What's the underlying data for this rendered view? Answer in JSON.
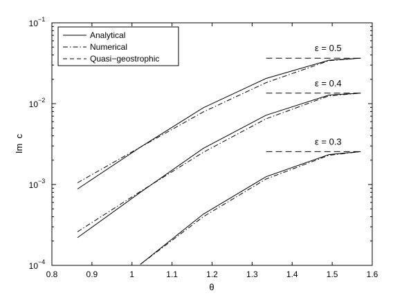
{
  "chart_data": {
    "type": "line",
    "xlabel": "θ",
    "ylabel": "Im  c",
    "yscale": "log",
    "xlim": [
      0.8,
      1.6
    ],
    "ylim": [
      0.0001,
      0.1
    ],
    "xticks": [
      "0.8",
      "0.9",
      "1",
      "1.1",
      "1.2",
      "1.3",
      "1.4",
      "1.5",
      "1.6"
    ],
    "yticks": [
      {
        "base": "10",
        "exp": "−4",
        "value": 0.0001
      },
      {
        "base": "10",
        "exp": "−3",
        "value": 0.001
      },
      {
        "base": "10",
        "exp": "−2",
        "value": 0.01
      },
      {
        "base": "10",
        "exp": "−1",
        "value": 0.1
      }
    ],
    "grid": false,
    "legend_position": "top-left",
    "legend": [
      {
        "label": "Analytical",
        "style": "solid"
      },
      {
        "label": "Numerical",
        "style": "dashdot"
      },
      {
        "label": "Quasi−geostrophic",
        "style": "dashed"
      }
    ],
    "curves": [
      {
        "epsilon_label": "ε = 0.5",
        "analytical": {
          "x": [
            0.864,
            1.021,
            1.178,
            1.335,
            1.492,
            1.571
          ],
          "y": [
            0.00088,
            0.0029,
            0.0089,
            0.0205,
            0.0345,
            0.0365
          ]
        },
        "numerical": {
          "x": [
            0.864,
            1.021,
            1.178,
            1.335,
            1.492,
            1.571
          ],
          "y": [
            0.00105,
            0.0029,
            0.0079,
            0.0182,
            0.034,
            0.0365
          ]
        },
        "quasi_geostrophic": {
          "x": [
            1.335,
            1.571
          ],
          "y": [
            0.0365,
            0.0365
          ]
        }
      },
      {
        "epsilon_label": "ε = 0.4",
        "analytical": {
          "x": [
            0.864,
            1.021,
            1.178,
            1.335,
            1.492,
            1.571
          ],
          "y": [
            0.00022,
            0.0008,
            0.0028,
            0.0072,
            0.0128,
            0.0135
          ]
        },
        "numerical": {
          "x": [
            0.864,
            1.021,
            1.178,
            1.335,
            1.492,
            1.571
          ],
          "y": [
            0.00026,
            0.00082,
            0.0025,
            0.0065,
            0.0125,
            0.0135
          ]
        },
        "quasi_geostrophic": {
          "x": [
            1.335,
            1.571
          ],
          "y": [
            0.0135,
            0.0135
          ]
        }
      },
      {
        "epsilon_label": "ε = 0.3",
        "analytical": {
          "x": [
            1.021,
            1.178,
            1.335,
            1.492,
            1.571
          ],
          "y": [
            0.000103,
            0.00043,
            0.00125,
            0.00235,
            0.00255
          ]
        },
        "numerical": {
          "x": [
            1.021,
            1.178,
            1.335,
            1.492,
            1.571
          ],
          "y": [
            0.000103,
            0.0004,
            0.00117,
            0.0023,
            0.00255
          ]
        },
        "quasi_geostrophic": {
          "x": [
            1.335,
            1.571
          ],
          "y": [
            0.00255,
            0.00255
          ]
        }
      }
    ]
  }
}
